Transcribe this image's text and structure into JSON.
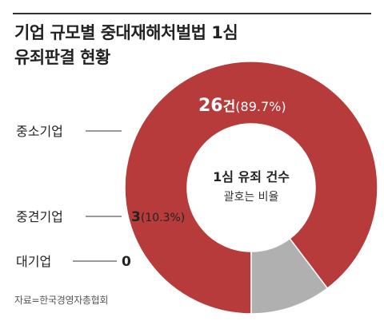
{
  "title_line1": "기업 규모별 중대재해처벌법 1심",
  "title_line2": "유죄판결 현황",
  "source": "자료=한국경영자총협회",
  "colors": {
    "large": "#b73b3b",
    "medium": "#b0b0b0",
    "small": "#888888",
    "label_light": "#ffffff",
    "label_dark": "#222222"
  },
  "chart_data": {
    "type": "pie",
    "variant": "donut",
    "center_label_line1": "1심 유죄 건수",
    "center_label_line2": "괄호는 비율",
    "slices": [
      {
        "category": "중소기업",
        "count": 26,
        "unit": "건",
        "percent": 89.7,
        "value_label": "26",
        "unit_label": "건",
        "percent_label": "(89.7%)"
      },
      {
        "category": "중견기업",
        "count": 3,
        "unit": "",
        "percent": 10.3,
        "value_label": "3",
        "unit_label": "",
        "percent_label": "(10.3%)"
      },
      {
        "category": "대기업",
        "count": 0,
        "unit": "",
        "percent": 0,
        "value_label": "0",
        "unit_label": "",
        "percent_label": ""
      }
    ]
  }
}
